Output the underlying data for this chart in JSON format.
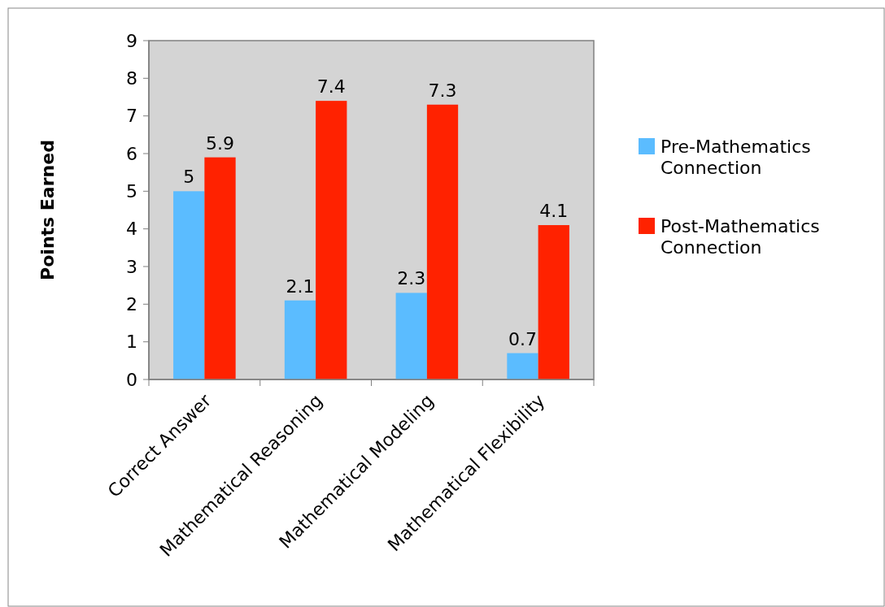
{
  "chart_data": {
    "type": "bar",
    "ylabel": "Points Earned",
    "categories": [
      "Correct Answer",
      "Mathematical Reasoning",
      "Mathematical Modeling",
      "Mathematical Flexibility"
    ],
    "series": [
      {
        "name": "Pre-Mathematics Connection",
        "color": "#5bbcff",
        "values": [
          5,
          2.1,
          2.3,
          0.7
        ]
      },
      {
        "name": "Post-Mathematics Connection",
        "color": "#ff2200",
        "values": [
          5.9,
          7.4,
          7.3,
          4.1
        ]
      }
    ],
    "ylim": [
      0,
      9
    ],
    "yticks": [
      0,
      1,
      2,
      3,
      4,
      5,
      6,
      7,
      8,
      9
    ],
    "data_labels": true,
    "legend": "right",
    "grid": false
  }
}
